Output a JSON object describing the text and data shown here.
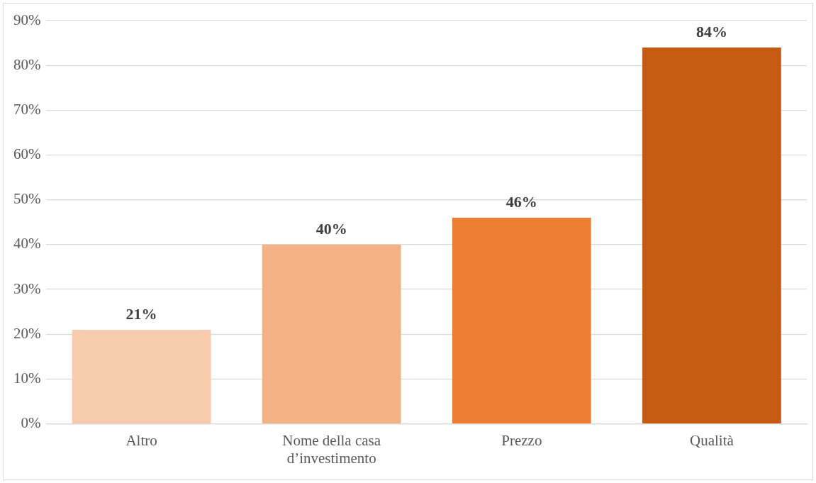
{
  "chart_data": {
    "type": "bar",
    "categories": [
      "Altro",
      "Nome della casa d’investimento",
      "Prezzo",
      "Qualità"
    ],
    "values": [
      21,
      40,
      46,
      84
    ],
    "colors": [
      "#f8cbad",
      "#f4b183",
      "#ed7d31",
      "#c55a11"
    ],
    "ylim": [
      0,
      90
    ],
    "yticks": [
      {
        "value": 0,
        "label": "0%"
      },
      {
        "value": 10,
        "label": "10%"
      },
      {
        "value": 20,
        "label": "20%"
      },
      {
        "value": 30,
        "label": "30%"
      },
      {
        "value": 40,
        "label": "40%"
      },
      {
        "value": 50,
        "label": "50%"
      },
      {
        "value": 60,
        "label": "60%"
      },
      {
        "value": 70,
        "label": "70%"
      },
      {
        "value": 80,
        "label": "80%"
      },
      {
        "value": 90,
        "label": "90%"
      }
    ],
    "value_labels": [
      "21%",
      "40%",
      "46%",
      "84%"
    ],
    "grid": "y",
    "legend": false
  }
}
